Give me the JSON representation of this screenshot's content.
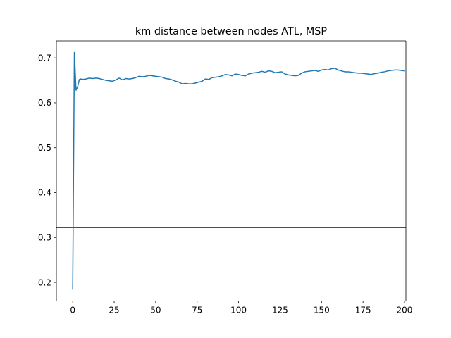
{
  "chart_data": {
    "type": "line",
    "title": "km distance between nodes ATL, MSP",
    "xlabel": "",
    "ylabel": "",
    "xlim": [
      -9.85,
      200.85
    ],
    "ylim": [
      0.1584,
      0.7379
    ],
    "x_ticks": [
      0,
      25,
      50,
      75,
      100,
      125,
      150,
      175,
      200
    ],
    "y_ticks": [
      0.2,
      0.3,
      0.4,
      0.5,
      0.6,
      0.7
    ],
    "grid": false,
    "legend": "none",
    "series": [
      {
        "color": "#1f77b4",
        "x": [
          0,
          1,
          2,
          3,
          4,
          5,
          6,
          8,
          10,
          12,
          14,
          16,
          18,
          20,
          22,
          24,
          26,
          28,
          30,
          32,
          34,
          36,
          38,
          40,
          42,
          44,
          46,
          48,
          50,
          52,
          54,
          56,
          58,
          60,
          62,
          64,
          66,
          68,
          70,
          72,
          74,
          76,
          78,
          80,
          82,
          84,
          86,
          88,
          90,
          92,
          94,
          96,
          98,
          100,
          102,
          104,
          106,
          108,
          110,
          112,
          114,
          116,
          118,
          120,
          122,
          124,
          126,
          128,
          130,
          132,
          134,
          136,
          138,
          140,
          142,
          144,
          146,
          148,
          150,
          152,
          154,
          156,
          158,
          160,
          162,
          164,
          166,
          168,
          170,
          172,
          174,
          176,
          178,
          180,
          182,
          184,
          186,
          188,
          190,
          192,
          194,
          196,
          198,
          200
        ],
        "values": [
          0.185,
          0.712,
          0.628,
          0.636,
          0.652,
          0.653,
          0.652,
          0.653,
          0.655,
          0.654,
          0.655,
          0.654,
          0.652,
          0.65,
          0.649,
          0.648,
          0.651,
          0.655,
          0.651,
          0.654,
          0.653,
          0.654,
          0.656,
          0.659,
          0.658,
          0.659,
          0.661,
          0.66,
          0.659,
          0.658,
          0.657,
          0.654,
          0.653,
          0.651,
          0.648,
          0.646,
          0.642,
          0.643,
          0.642,
          0.642,
          0.644,
          0.646,
          0.648,
          0.653,
          0.652,
          0.656,
          0.657,
          0.658,
          0.66,
          0.663,
          0.662,
          0.66,
          0.664,
          0.663,
          0.661,
          0.66,
          0.664,
          0.666,
          0.667,
          0.668,
          0.67,
          0.668,
          0.671,
          0.67,
          0.667,
          0.668,
          0.669,
          0.664,
          0.662,
          0.661,
          0.66,
          0.661,
          0.666,
          0.669,
          0.67,
          0.671,
          0.672,
          0.67,
          0.673,
          0.674,
          0.673,
          0.676,
          0.677,
          0.673,
          0.671,
          0.669,
          0.669,
          0.668,
          0.667,
          0.666,
          0.666,
          0.665,
          0.664,
          0.663,
          0.665,
          0.666,
          0.668,
          0.669,
          0.671,
          0.672,
          0.673,
          0.673,
          0.672,
          0.671
        ]
      }
    ],
    "hline": {
      "y": 0.322,
      "color": "#ff0000"
    }
  }
}
